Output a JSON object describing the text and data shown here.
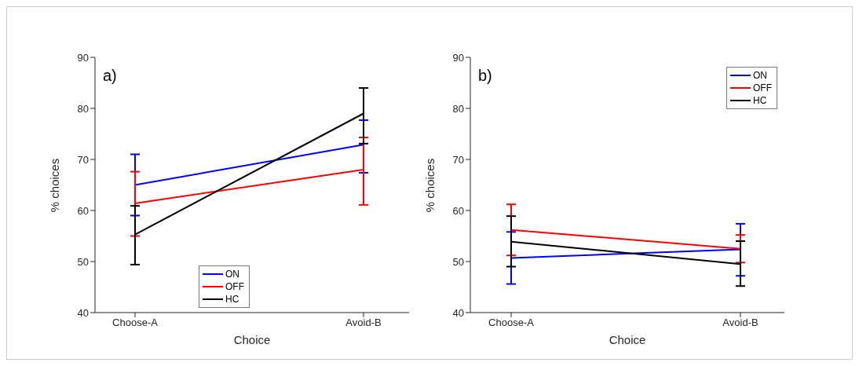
{
  "chart_data": [
    {
      "type": "line",
      "title": "a)",
      "categories": [
        "Choose-A",
        "Avoid-B"
      ],
      "xlabel": "Choice",
      "ylabel": "% choices",
      "ylim": [
        40,
        90
      ],
      "yticks": [
        40,
        50,
        60,
        70,
        80,
        90
      ],
      "grid": false,
      "legend": "bottom",
      "marker": "none",
      "line_style": "solid",
      "series": [
        {
          "name": "ON",
          "color": "#0000ff",
          "values": [
            65,
            72.9
          ],
          "errors": [
            [
              59,
              71
            ],
            [
              67.4,
              77.7
            ]
          ]
        },
        {
          "name": "OFF",
          "color": "#ff0000",
          "values": [
            61.4,
            68
          ],
          "errors": [
            [
              55,
              67.6
            ],
            [
              61.1,
              74.3
            ]
          ]
        },
        {
          "name": "HC",
          "color": "#000000",
          "values": [
            55.3,
            79
          ],
          "errors": [
            [
              49.4,
              60.9
            ],
            [
              73.1,
              84
            ]
          ]
        }
      ]
    },
    {
      "type": "line",
      "title": "b)",
      "categories": [
        "Choose-A",
        "Avoid-B"
      ],
      "xlabel": "Choice",
      "ylabel": "% choices",
      "ylim": [
        40,
        90
      ],
      "yticks": [
        40,
        50,
        60,
        70,
        80,
        90
      ],
      "grid": false,
      "legend": "top right",
      "marker": "none",
      "line_style": "solid",
      "series": [
        {
          "name": "ON",
          "color": "#0000ff",
          "values": [
            50.7,
            52.4
          ],
          "errors": [
            [
              45.6,
              55.8
            ],
            [
              47.2,
              57.4
            ]
          ]
        },
        {
          "name": "OFF",
          "color": "#ff0000",
          "values": [
            56.2,
            52.5
          ],
          "errors": [
            [
              51.2,
              61.2
            ],
            [
              49.8,
              55.2
            ]
          ]
        },
        {
          "name": "HC",
          "color": "#000000",
          "values": [
            53.9,
            49.5
          ],
          "errors": [
            [
              49,
              58.9
            ],
            [
              45.2,
              54
            ]
          ]
        }
      ]
    }
  ]
}
